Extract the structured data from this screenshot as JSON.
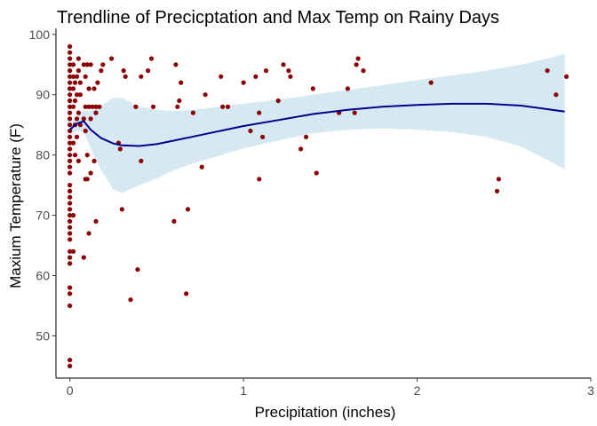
{
  "chart_data": {
    "type": "scatter",
    "title": "Trendline of Precicptation and Max Temp on Rainy Days",
    "xlabel": "Precipitation (inches)",
    "ylabel": "Maxium Temperature (F)",
    "xlim": [
      -0.08,
      3.0
    ],
    "ylim": [
      43,
      101
    ],
    "x_ticks": [
      0,
      1,
      2,
      3
    ],
    "y_ticks": [
      50,
      60,
      70,
      80,
      90,
      100
    ],
    "x_tick_labels": [
      "0",
      "1",
      "2",
      "3"
    ],
    "y_tick_labels": [
      "50",
      "60",
      "70",
      "80",
      "90",
      "100"
    ],
    "grid": false,
    "colors": {
      "points": "#8b0000",
      "trend_line": "#00008b",
      "confidence_band": "#d6e9f3"
    },
    "points": [
      [
        0,
        45
      ],
      [
        0,
        46
      ],
      [
        0,
        55
      ],
      [
        0,
        57
      ],
      [
        0,
        58
      ],
      [
        0,
        62
      ],
      [
        0,
        63
      ],
      [
        0,
        64
      ],
      [
        0,
        66
      ],
      [
        0,
        67
      ],
      [
        0,
        68
      ],
      [
        0,
        69
      ],
      [
        0,
        70
      ],
      [
        0,
        71
      ],
      [
        0,
        72
      ],
      [
        0,
        73
      ],
      [
        0,
        74
      ],
      [
        0,
        75
      ],
      [
        0,
        77
      ],
      [
        0,
        78
      ],
      [
        0,
        79
      ],
      [
        0,
        80
      ],
      [
        0,
        81
      ],
      [
        0,
        82
      ],
      [
        0,
        83
      ],
      [
        0,
        84
      ],
      [
        0,
        85
      ],
      [
        0,
        86
      ],
      [
        0,
        87
      ],
      [
        0,
        88
      ],
      [
        0,
        89
      ],
      [
        0,
        90
      ],
      [
        0,
        91
      ],
      [
        0,
        92
      ],
      [
        0,
        93
      ],
      [
        0,
        94
      ],
      [
        0,
        95
      ],
      [
        0,
        96
      ],
      [
        0,
        97
      ],
      [
        0,
        98
      ],
      [
        0.02,
        64
      ],
      [
        0.02,
        70
      ],
      [
        0.02,
        82
      ],
      [
        0.02,
        88
      ],
      [
        0.02,
        91
      ],
      [
        0.02,
        93
      ],
      [
        0.02,
        95
      ],
      [
        0.03,
        80
      ],
      [
        0.03,
        85
      ],
      [
        0.03,
        89
      ],
      [
        0.03,
        92
      ],
      [
        0.04,
        83
      ],
      [
        0.04,
        86
      ],
      [
        0.04,
        90
      ],
      [
        0.04,
        93
      ],
      [
        0.05,
        79
      ],
      [
        0.05,
        87
      ],
      [
        0.05,
        94
      ],
      [
        0.05,
        96
      ],
      [
        0.06,
        85
      ],
      [
        0.06,
        90
      ],
      [
        0.06,
        92
      ],
      [
        0.08,
        63
      ],
      [
        0.08,
        86
      ],
      [
        0.08,
        95
      ],
      [
        0.09,
        76
      ],
      [
        0.09,
        84
      ],
      [
        0.09,
        88
      ],
      [
        0.09,
        93
      ],
      [
        0.1,
        76
      ],
      [
        0.1,
        80
      ],
      [
        0.1,
        95
      ],
      [
        0.11,
        67
      ],
      [
        0.11,
        88
      ],
      [
        0.11,
        91
      ],
      [
        0.12,
        77
      ],
      [
        0.12,
        86
      ],
      [
        0.12,
        95
      ],
      [
        0.13,
        88
      ],
      [
        0.14,
        79
      ],
      [
        0.14,
        91
      ],
      [
        0.15,
        69
      ],
      [
        0.15,
        87
      ],
      [
        0.15,
        88
      ],
      [
        0.16,
        92
      ],
      [
        0.17,
        88
      ],
      [
        0.18,
        94
      ],
      [
        0.19,
        95
      ],
      [
        0.24,
        96
      ],
      [
        0.28,
        82
      ],
      [
        0.29,
        81
      ],
      [
        0.3,
        71
      ],
      [
        0.31,
        94
      ],
      [
        0.32,
        93
      ],
      [
        0.35,
        56
      ],
      [
        0.38,
        88
      ],
      [
        0.39,
        61
      ],
      [
        0.41,
        79
      ],
      [
        0.41,
        93
      ],
      [
        0.45,
        94
      ],
      [
        0.47,
        96
      ],
      [
        0.48,
        88
      ],
      [
        0.6,
        69
      ],
      [
        0.61,
        95
      ],
      [
        0.62,
        88
      ],
      [
        0.63,
        89
      ],
      [
        0.64,
        92
      ],
      [
        0.67,
        57
      ],
      [
        0.68,
        71
      ],
      [
        0.71,
        87
      ],
      [
        0.76,
        78
      ],
      [
        0.78,
        90
      ],
      [
        0.87,
        93
      ],
      [
        0.88,
        88
      ],
      [
        0.91,
        88
      ],
      [
        1.0,
        92
      ],
      [
        1.04,
        84
      ],
      [
        1.07,
        93
      ],
      [
        1.09,
        87
      ],
      [
        1.09,
        76
      ],
      [
        1.11,
        83
      ],
      [
        1.13,
        94
      ],
      [
        1.2,
        89
      ],
      [
        1.23,
        95
      ],
      [
        1.26,
        94
      ],
      [
        1.27,
        93
      ],
      [
        1.33,
        81
      ],
      [
        1.36,
        83
      ],
      [
        1.4,
        91
      ],
      [
        1.42,
        77
      ],
      [
        1.55,
        87
      ],
      [
        1.6,
        91
      ],
      [
        1.64,
        87
      ],
      [
        1.65,
        95
      ],
      [
        1.66,
        96
      ],
      [
        1.69,
        94
      ],
      [
        2.08,
        92
      ],
      [
        2.46,
        74
      ],
      [
        2.47,
        76
      ],
      [
        2.75,
        94
      ],
      [
        2.8,
        90
      ],
      [
        2.86,
        93
      ]
    ],
    "trend_line": [
      [
        0,
        84.2
      ],
      [
        0.04,
        85.2
      ],
      [
        0.08,
        85.6
      ],
      [
        0.12,
        84.2
      ],
      [
        0.18,
        82.8
      ],
      [
        0.25,
        81.9
      ],
      [
        0.3,
        81.6
      ],
      [
        0.4,
        81.5
      ],
      [
        0.5,
        81.8
      ],
      [
        0.6,
        82.4
      ],
      [
        0.7,
        83.0
      ],
      [
        0.8,
        83.6
      ],
      [
        0.9,
        84.2
      ],
      [
        1.0,
        84.8
      ],
      [
        1.2,
        85.8
      ],
      [
        1.4,
        86.8
      ],
      [
        1.6,
        87.5
      ],
      [
        1.8,
        88.0
      ],
      [
        2.0,
        88.3
      ],
      [
        2.2,
        88.5
      ],
      [
        2.4,
        88.5
      ],
      [
        2.6,
        88.2
      ],
      [
        2.75,
        87.6
      ],
      [
        2.85,
        87.2
      ]
    ],
    "confidence_upper": [
      [
        0,
        85.2
      ],
      [
        0.04,
        86.4
      ],
      [
        0.08,
        87.4
      ],
      [
        0.12,
        87.3
      ],
      [
        0.18,
        88.1
      ],
      [
        0.25,
        89.5
      ],
      [
        0.3,
        89.5
      ],
      [
        0.4,
        88.0
      ],
      [
        0.5,
        87.5
      ],
      [
        0.6,
        87.3
      ],
      [
        0.7,
        87.5
      ],
      [
        0.8,
        87.8
      ],
      [
        0.9,
        88.2
      ],
      [
        1.0,
        88.5
      ],
      [
        1.2,
        89.2
      ],
      [
        1.4,
        90.0
      ],
      [
        1.6,
        90.8
      ],
      [
        1.8,
        91.6
      ],
      [
        2.0,
        92.4
      ],
      [
        2.2,
        93.2
      ],
      [
        2.4,
        94.0
      ],
      [
        2.6,
        95.0
      ],
      [
        2.75,
        96.0
      ],
      [
        2.85,
        96.8
      ]
    ],
    "confidence_lower": [
      [
        0,
        83.2
      ],
      [
        0.04,
        84.0
      ],
      [
        0.08,
        83.8
      ],
      [
        0.12,
        81.1
      ],
      [
        0.18,
        77.5
      ],
      [
        0.25,
        74.3
      ],
      [
        0.3,
        73.7
      ],
      [
        0.4,
        75.0
      ],
      [
        0.5,
        76.1
      ],
      [
        0.6,
        77.5
      ],
      [
        0.7,
        78.5
      ],
      [
        0.8,
        79.4
      ],
      [
        0.9,
        80.2
      ],
      [
        1.0,
        81.1
      ],
      [
        1.2,
        82.4
      ],
      [
        1.4,
        83.6
      ],
      [
        1.6,
        84.2
      ],
      [
        1.8,
        84.4
      ],
      [
        2.0,
        84.2
      ],
      [
        2.2,
        83.8
      ],
      [
        2.4,
        83.0
      ],
      [
        2.6,
        81.4
      ],
      [
        2.75,
        79.2
      ],
      [
        2.85,
        77.6
      ]
    ]
  }
}
